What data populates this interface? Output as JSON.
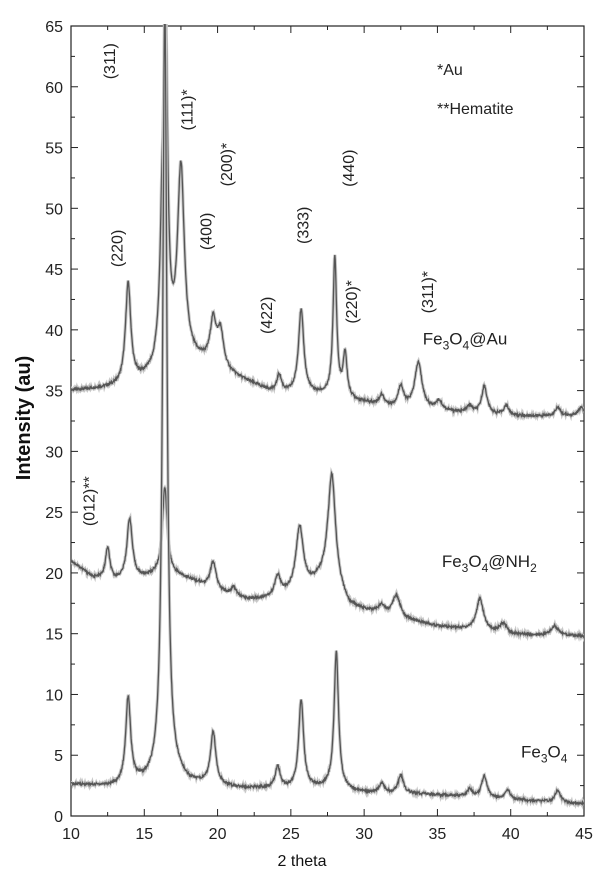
{
  "chart_data": {
    "type": "line",
    "title": "",
    "xlabel": "2 theta",
    "ylabel": "Intensity (au)",
    "xlim": [
      10,
      45
    ],
    "ylim": [
      0,
      65
    ],
    "x_ticks": [
      10,
      15,
      20,
      25,
      30,
      35,
      40,
      45
    ],
    "y_ticks": [
      0,
      5,
      10,
      15,
      20,
      25,
      30,
      35,
      40,
      45,
      50,
      55,
      60,
      65
    ],
    "legend": [
      "*Au",
      "**Hematite"
    ],
    "legend_position": "top-right",
    "grid": false,
    "line_color": "#555555",
    "series": [
      {
        "label_parts": [
          {
            "t": "Fe",
            "sub": false
          },
          {
            "t": "3",
            "sub": true
          },
          {
            "t": "O",
            "sub": false
          },
          {
            "t": "4",
            "sub": true
          },
          {
            "t": "@Au",
            "sub": false
          }
        ],
        "label_anchor": [
          34,
          38.8
        ],
        "baseline": [
          [
            10,
            35
          ],
          [
            14,
            35.3
          ],
          [
            15.6,
            36.3
          ],
          [
            16.2,
            37.8
          ],
          [
            17.1,
            37.5
          ],
          [
            19,
            37.2
          ],
          [
            21,
            36.2
          ],
          [
            23,
            35.2
          ],
          [
            24,
            34.7
          ],
          [
            27,
            34.6
          ],
          [
            29,
            34.2
          ],
          [
            32,
            33.6
          ],
          [
            35,
            33.3
          ],
          [
            40,
            32.9
          ],
          [
            45,
            32.9
          ]
        ],
        "peaks": [
          {
            "x": 13.9,
            "h": 8.4,
            "w": 0.22
          },
          {
            "x": 16.2,
            "h": 6.4,
            "w": 0.15
          },
          {
            "x": 16.45,
            "h": 26.8,
            "w": 0.17
          },
          {
            "x": 17.5,
            "h": 15.6,
            "w": 0.28
          },
          {
            "x": 19.7,
            "h": 3.6,
            "w": 0.25
          },
          {
            "x": 20.2,
            "h": 2.9,
            "w": 0.25
          },
          {
            "x": 24.2,
            "h": 1.5,
            "w": 0.2
          },
          {
            "x": 25.7,
            "h": 6.9,
            "w": 0.22
          },
          {
            "x": 28.0,
            "h": 11.4,
            "w": 0.15
          },
          {
            "x": 28.7,
            "h": 3.6,
            "w": 0.16
          },
          {
            "x": 31.2,
            "h": 0.8,
            "w": 0.2
          },
          {
            "x": 32.5,
            "h": 1.7,
            "w": 0.22
          },
          {
            "x": 33.7,
            "h": 3.8,
            "w": 0.3
          },
          {
            "x": 35.1,
            "h": 0.8,
            "w": 0.25
          },
          {
            "x": 37.2,
            "h": 0.6,
            "w": 0.2
          },
          {
            "x": 38.2,
            "h": 2.3,
            "w": 0.22
          },
          {
            "x": 39.7,
            "h": 0.8,
            "w": 0.22
          },
          {
            "x": 43.2,
            "h": 0.7,
            "w": 0.22
          },
          {
            "x": 44.8,
            "h": 0.7,
            "w": 0.22
          }
        ]
      },
      {
        "label_parts": [
          {
            "t": "Fe",
            "sub": false
          },
          {
            "t": "3",
            "sub": true
          },
          {
            "t": "O",
            "sub": false
          },
          {
            "t": "4",
            "sub": true
          },
          {
            "t": "@NH",
            "sub": false
          },
          {
            "t": "2",
            "sub": true
          }
        ],
        "label_anchor": [
          35.3,
          20.5
        ],
        "baseline": [
          [
            10,
            21
          ],
          [
            11.5,
            19.6
          ],
          [
            13,
            19.3
          ],
          [
            15,
            19.6
          ],
          [
            16.4,
            20.0
          ],
          [
            18,
            19.5
          ],
          [
            20,
            18.4
          ],
          [
            22,
            17.8
          ],
          [
            24,
            17.9
          ],
          [
            26,
            18.7
          ],
          [
            27.5,
            19.7
          ],
          [
            29,
            17.2
          ],
          [
            31,
            16.6
          ],
          [
            33,
            16.1
          ],
          [
            35,
            15.6
          ],
          [
            38,
            15.2
          ],
          [
            40,
            14.9
          ],
          [
            45,
            14.8
          ]
        ],
        "peaks": [
          {
            "x": 12.5,
            "h": 2.6,
            "w": 0.18
          },
          {
            "x": 14.0,
            "h": 5.0,
            "w": 0.22
          },
          {
            "x": 16.4,
            "h": 7.0,
            "w": 0.2
          },
          {
            "x": 19.7,
            "h": 2.3,
            "w": 0.25
          },
          {
            "x": 21.1,
            "h": 0.7,
            "w": 0.2
          },
          {
            "x": 24.1,
            "h": 1.7,
            "w": 0.25
          },
          {
            "x": 25.6,
            "h": 5.2,
            "w": 0.3
          },
          {
            "x": 27.8,
            "h": 8.8,
            "w": 0.3
          },
          {
            "x": 31.2,
            "h": 0.7,
            "w": 0.3
          },
          {
            "x": 32.2,
            "h": 1.8,
            "w": 0.3
          },
          {
            "x": 37.9,
            "h": 2.6,
            "w": 0.3
          },
          {
            "x": 39.5,
            "h": 0.8,
            "w": 0.3
          },
          {
            "x": 43.0,
            "h": 0.8,
            "w": 0.3
          }
        ]
      },
      {
        "label_parts": [
          {
            "t": "Fe",
            "sub": false
          },
          {
            "t": "3",
            "sub": true
          },
          {
            "t": "O",
            "sub": false
          },
          {
            "t": "4",
            "sub": true
          }
        ],
        "label_anchor": [
          40.7,
          4.8
        ],
        "baseline": [
          [
            10,
            2.6
          ],
          [
            13,
            2.4
          ],
          [
            15.5,
            2.8
          ],
          [
            16.8,
            3.5
          ],
          [
            18,
            2.7
          ],
          [
            21,
            2.3
          ],
          [
            25,
            2.2
          ],
          [
            27.5,
            2.3
          ],
          [
            30,
            1.9
          ],
          [
            34,
            1.8
          ],
          [
            38,
            1.5
          ],
          [
            42,
            1.2
          ],
          [
            45,
            1.0
          ]
        ],
        "peaks": [
          {
            "x": 13.9,
            "h": 7.1,
            "w": 0.2
          },
          {
            "x": 16.4,
            "h": 63.5,
            "w": 0.17
          },
          {
            "x": 19.7,
            "h": 4.3,
            "w": 0.22
          },
          {
            "x": 24.1,
            "h": 1.8,
            "w": 0.2
          },
          {
            "x": 25.7,
            "h": 7.3,
            "w": 0.2
          },
          {
            "x": 28.1,
            "h": 11.3,
            "w": 0.18
          },
          {
            "x": 31.2,
            "h": 0.8,
            "w": 0.2
          },
          {
            "x": 32.5,
            "h": 1.5,
            "w": 0.22
          },
          {
            "x": 37.2,
            "h": 0.6,
            "w": 0.2
          },
          {
            "x": 38.2,
            "h": 1.8,
            "w": 0.22
          },
          {
            "x": 39.8,
            "h": 0.7,
            "w": 0.22
          },
          {
            "x": 43.2,
            "h": 1.0,
            "w": 0.22
          }
        ]
      }
    ],
    "annotations": [
      {
        "text": "(311)",
        "x": 13.0,
        "y": 62.1
      },
      {
        "text": "(111)*",
        "x": 18.3,
        "y": 58.1
      },
      {
        "text": "(200)*",
        "x": 21.0,
        "y": 53.6
      },
      {
        "text": "(220)",
        "x": 13.5,
        "y": 46.7
      },
      {
        "text": "(400)",
        "x": 19.6,
        "y": 48.1
      },
      {
        "text": "(422)",
        "x": 23.7,
        "y": 41.2
      },
      {
        "text": "(333)",
        "x": 26.2,
        "y": 48.6
      },
      {
        "text": "(440)",
        "x": 29.3,
        "y": 53.3
      },
      {
        "text": "(220)*",
        "x": 29.5,
        "y": 42.3
      },
      {
        "text": "(311)*",
        "x": 34.7,
        "y": 43.1
      },
      {
        "text": "(012)**",
        "x": 11.6,
        "y": 25.9
      }
    ]
  }
}
